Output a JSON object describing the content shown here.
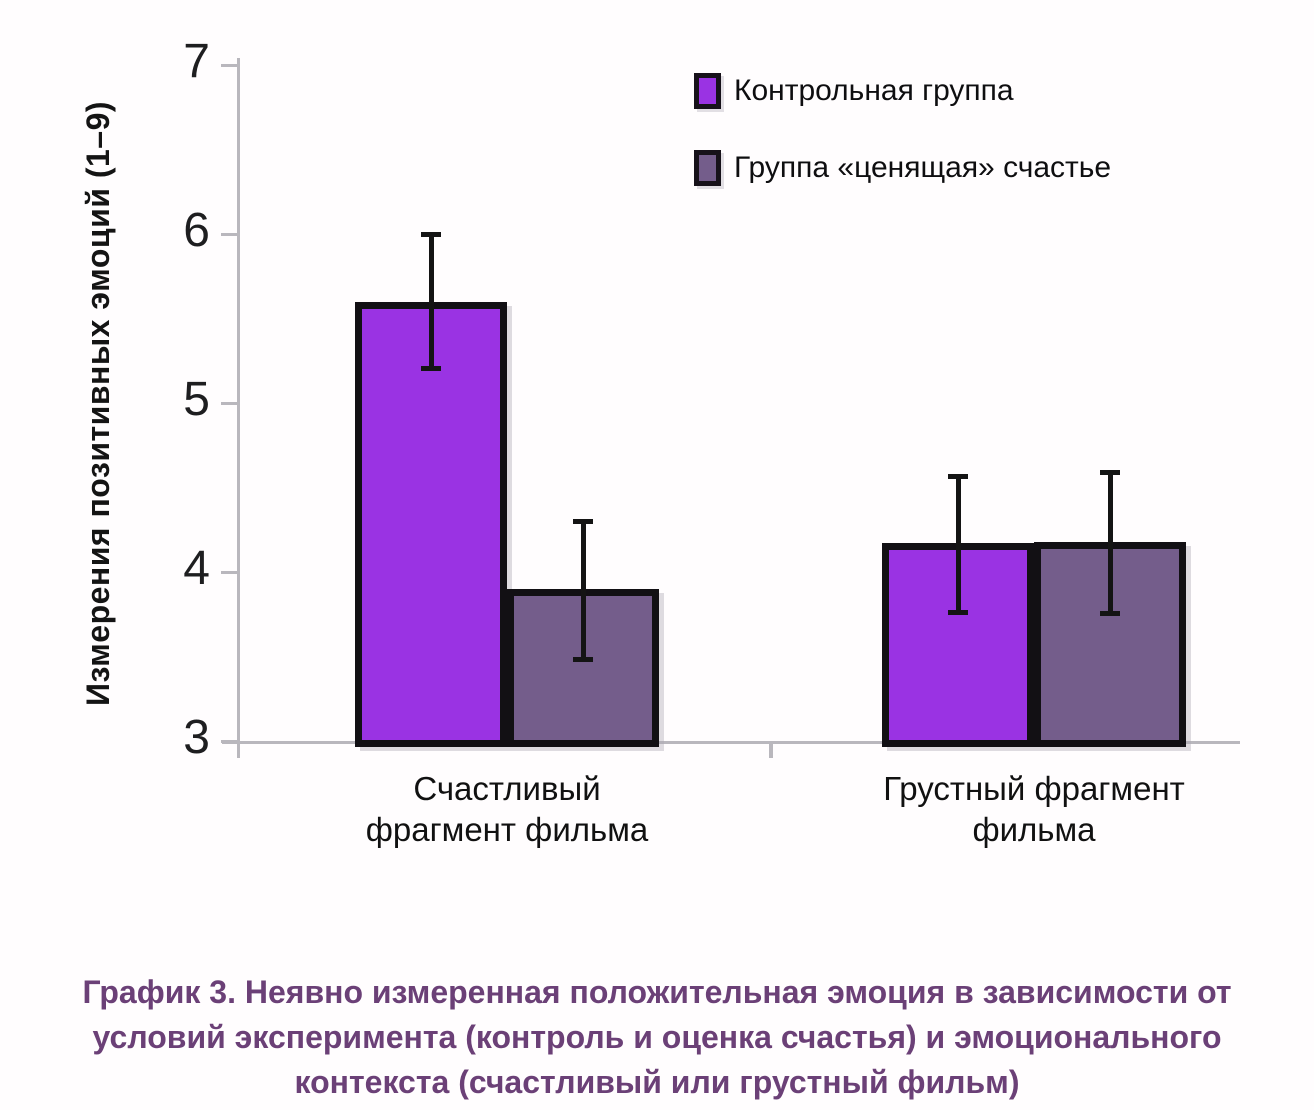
{
  "background": "#fffdfe",
  "chart_data": {
    "type": "bar",
    "title": "",
    "xlabel": "",
    "ylabel": "Измерения позитивных эмоций (1–9)",
    "ylim": [
      3,
      7
    ],
    "yticks": [
      7,
      6,
      5,
      4,
      3
    ],
    "grid": false,
    "legend_position": "top-right",
    "categories": [
      "Счастливый\nфрагмент фильма",
      "Грустный фрагмент\nфильма"
    ],
    "series": [
      {
        "name": "Контрольная группа",
        "color": "#9a33e3",
        "values": [
          5.6,
          4.17
        ],
        "error_low": [
          5.2,
          3.76
        ],
        "error_high": [
          6.0,
          4.57
        ]
      },
      {
        "name": "Группа «ценящая» счастье",
        "color": "#745d8b",
        "values": [
          3.9,
          4.18
        ],
        "error_low": [
          3.48,
          3.75
        ],
        "error_high": [
          4.3,
          4.59
        ]
      }
    ]
  },
  "caption": {
    "color": "#6b4077",
    "lines": [
      "График 3. Неявно измеренная положительная эмоция в зависимости от",
      "условий эксперимента (контроль и оценка счастья) и эмоционального",
      "контекста (счастливый или грустный фильм)"
    ]
  },
  "colors": {
    "axis": "#b9b7bd",
    "bar_border": "#121014",
    "tick_text": "#1e1e20"
  }
}
